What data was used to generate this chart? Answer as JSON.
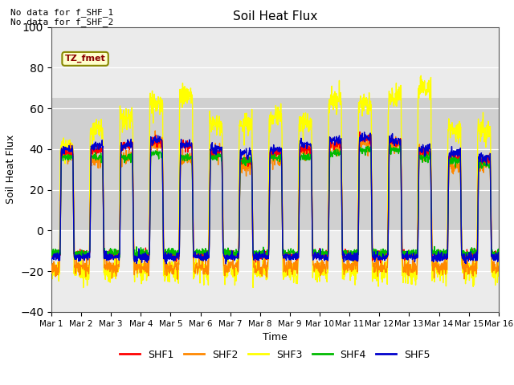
{
  "title": "Soil Heat Flux",
  "xlabel": "Time",
  "ylabel": "Soil Heat Flux",
  "ylim": [
    -40,
    100
  ],
  "yticks": [
    -40,
    -20,
    0,
    20,
    40,
    60,
    80,
    100
  ],
  "colors": {
    "SHF1": "#ff0000",
    "SHF2": "#ff8800",
    "SHF3": "#ffff00",
    "SHF4": "#00bb00",
    "SHF5": "#0000cc"
  },
  "legend_labels": [
    "SHF1",
    "SHF2",
    "SHF3",
    "SHF4",
    "SHF5"
  ],
  "annotation_text": "No data for f_SHF_1\nNo data for f_SHF_2",
  "box_label": "TZ_fmet",
  "plot_bg": "#ebebeb",
  "shaded_ymin": 0,
  "shaded_ymax": 65,
  "shaded_color": "#d0d0d0",
  "x_start": 0,
  "x_end": 15,
  "n_points": 1500,
  "xtick_positions": [
    0,
    1,
    2,
    3,
    4,
    5,
    6,
    7,
    8,
    9,
    10,
    11,
    12,
    13,
    14,
    15
  ],
  "xtick_labels": [
    "Mar 1",
    "Mar 2",
    "Mar 3",
    "Mar 4",
    "Mar 5",
    "Mar 6",
    "Mar 7",
    "Mar 8",
    "Mar 9",
    "Mar 10",
    "Mar 11",
    "Mar 12",
    "Mar 13",
    "Mar 14",
    "Mar 15",
    "Mar 16"
  ]
}
